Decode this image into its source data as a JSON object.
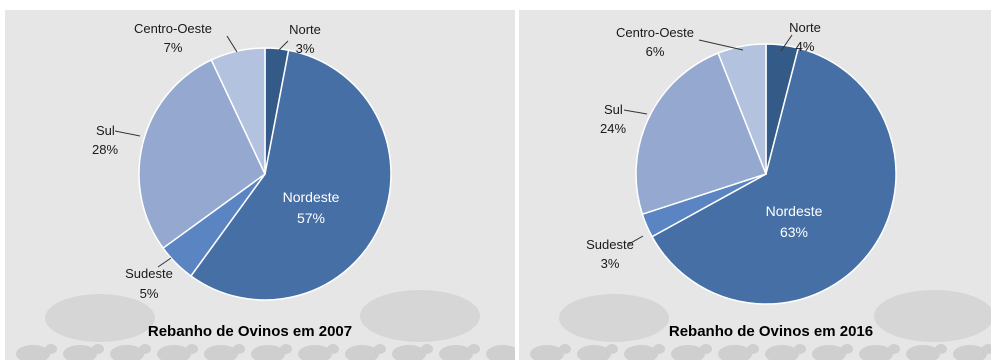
{
  "colors": {
    "Norte": "#345a87",
    "Nordeste": "#4670a5",
    "Sudeste": "#5a85c2",
    "Sul": "#94a8d0",
    "Centro-Oeste": "#b3c2de",
    "background": "#e6e6e6"
  },
  "chart_data": [
    {
      "type": "pie",
      "title": "Rebanho de Ovinos em 2007",
      "slices": [
        {
          "name": "Norte",
          "value": 3,
          "pct_label": "3%"
        },
        {
          "name": "Nordeste",
          "value": 57,
          "pct_label": "57%"
        },
        {
          "name": "Sudeste",
          "value": 5,
          "pct_label": "5%"
        },
        {
          "name": "Sul",
          "value": 28,
          "pct_label": "28%"
        },
        {
          "name": "Centro-Oeste",
          "value": 7,
          "pct_label": "7%"
        }
      ]
    },
    {
      "type": "pie",
      "title": "Rebanho de Ovinos em 2016",
      "slices": [
        {
          "name": "Norte",
          "value": 4,
          "pct_label": "4%"
        },
        {
          "name": "Nordeste",
          "value": 63,
          "pct_label": "63%"
        },
        {
          "name": "Sudeste",
          "value": 3,
          "pct_label": "3%"
        },
        {
          "name": "Sul",
          "value": 24,
          "pct_label": "24%"
        },
        {
          "name": "Centro-Oeste",
          "value": 6,
          "pct_label": "6%"
        }
      ]
    }
  ]
}
